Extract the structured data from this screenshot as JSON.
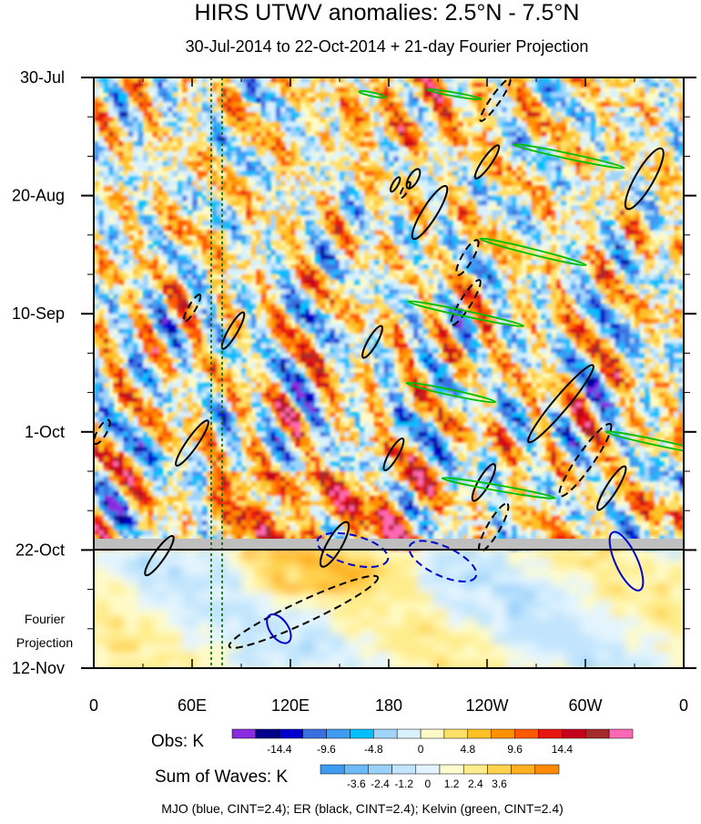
{
  "colors": {
    "obs_scale": [
      "#8a2be2",
      "#00008b",
      "#0000cd",
      "#3a6fe0",
      "#3f9af2",
      "#00bfff",
      "#9fd4fb",
      "#d8f2ff",
      "#fffbc8",
      "#ffe066",
      "#ffc125",
      "#ff9000",
      "#ff5a00",
      "#e8140f",
      "#c4001d",
      "#a52a2a",
      "#ff69b4"
    ],
    "sum_scale": [
      "#3f9af2",
      "#6cbaf8",
      "#98d2fb",
      "#c2e5fd",
      "#e3f4fe",
      "#fffbd0",
      "#ffec8b",
      "#ffd24d",
      "#ffb020",
      "#ff8a00"
    ],
    "mjo": "#0000cd",
    "er": "#000000",
    "kelvin": "#00c000",
    "divider": "#bfbfbf",
    "dotted_lines": "#006400"
  },
  "chart_data": {
    "type": "heatmap",
    "title": "HIRS UTWV anomalies: 2.5°N - 7.5°N",
    "subtitle": "30-Jul-2014 to 22-Oct-2014 + 21-day Fourier Projection",
    "x_ticks": [
      "0",
      "60E",
      "120E",
      "180",
      "120W",
      "60W",
      "0"
    ],
    "y_ticks": [
      "30-Jul",
      "20-Aug",
      "10-Sep",
      "1-Oct",
      "22-Oct",
      "12-Nov"
    ],
    "projection_label_line1": "Fourier",
    "projection_label_line2": "Projection",
    "obs_legend": {
      "label": "Obs: K",
      "tick_labels": [
        "-14.4",
        "-9.6",
        "-4.8",
        "0",
        "4.8",
        "9.6",
        "14.4"
      ]
    },
    "sum_legend": {
      "label": "Sum of Waves: K",
      "tick_labels": [
        "-3.6",
        "-2.4",
        "-1.2",
        "0",
        "1.2",
        "2.4",
        "3.6"
      ]
    },
    "footer": "MJO (blue, CINT=2.4); ER (black, CINT=2.4); Kelvin (green, CINT=2.4)",
    "overlays": {
      "er": [
        {
          "lon": 184,
          "day": 19,
          "rx": 9,
          "ry": 3,
          "rot": -60,
          "dash": false
        },
        {
          "lon": 195,
          "day": 18,
          "rx": 12,
          "ry": 5,
          "rot": -60,
          "dash": false
        },
        {
          "lon": 240,
          "day": 15,
          "rx": 22,
          "ry": 5,
          "rot": -55,
          "dash": false
        },
        {
          "lon": 205,
          "day": 24,
          "rx": 34,
          "ry": 8,
          "rot": -58,
          "dash": false
        },
        {
          "lon": 228,
          "day": 32,
          "rx": 22,
          "ry": 6,
          "rot": -60,
          "dash": true
        },
        {
          "lon": 190,
          "day": 20,
          "rx": 10,
          "ry": 3,
          "rot": -60,
          "dash": true
        },
        {
          "lon": 170,
          "day": 47,
          "rx": 20,
          "ry": 5,
          "rot": -60,
          "dash": false
        },
        {
          "lon": 183,
          "day": 67,
          "rx": 20,
          "ry": 5,
          "rot": -60,
          "dash": false
        },
        {
          "lon": 60,
          "day": 65,
          "rx": 30,
          "ry": 6,
          "rot": -55,
          "dash": false
        },
        {
          "lon": 85,
          "day": 45,
          "rx": 23,
          "ry": 5,
          "rot": -60,
          "dash": false
        },
        {
          "lon": 60,
          "day": 41,
          "rx": 17,
          "ry": 4,
          "rot": -60,
          "dash": true
        },
        {
          "lon": 227,
          "day": 40,
          "rx": 29,
          "ry": 6,
          "rot": -58,
          "dash": true
        },
        {
          "lon": 300,
          "day": 68,
          "rx": 48,
          "ry": 9,
          "rot": -55,
          "dash": true
        },
        {
          "lon": 285,
          "day": 58,
          "rx": 55,
          "ry": 8,
          "rot": -50,
          "dash": false
        },
        {
          "lon": 316,
          "day": 73,
          "rx": 28,
          "ry": 6,
          "rot": -58,
          "dash": false
        },
        {
          "lon": 244,
          "day": 80,
          "rx": 30,
          "ry": 7,
          "rot": -60,
          "dash": true
        },
        {
          "lon": 238,
          "day": 72,
          "rx": 23,
          "ry": 6,
          "rot": -60,
          "dash": false
        },
        {
          "lon": 147,
          "day": 83,
          "rx": 28,
          "ry": 8,
          "rot": -60,
          "dash": false
        },
        {
          "lon": 40,
          "day": 85,
          "rx": 26,
          "ry": 6,
          "rot": -55,
          "dash": false
        },
        {
          "lon": 128,
          "day": 95,
          "rx": 90,
          "ry": 12,
          "rot": -25,
          "dash": true
        },
        {
          "lon": 336,
          "day": 18,
          "rx": 38,
          "ry": 10,
          "rot": -60,
          "dash": false
        },
        {
          "lon": 245,
          "day": 4,
          "rx": 28,
          "ry": 5,
          "rot": -55,
          "dash": true
        },
        {
          "lon": 5,
          "day": 63,
          "rx": 15,
          "ry": 5,
          "rot": -60,
          "dash": true
        }
      ],
      "mjo": [
        {
          "lon": 113,
          "day": 98,
          "rx": 18,
          "ry": 10,
          "rot": 55,
          "dash": false
        },
        {
          "lon": 158,
          "day": 84,
          "rx": 40,
          "ry": 16,
          "rot": 15,
          "dash": true
        },
        {
          "lon": 213,
          "day": 86,
          "rx": 40,
          "ry": 16,
          "rot": 25,
          "dash": true
        },
        {
          "lon": 325,
          "day": 86,
          "rx": 35,
          "ry": 12,
          "rot": 65,
          "dash": false
        }
      ],
      "kelvin": [
        {
          "lon": 290,
          "day": 14,
          "rx": 62,
          "ry": 3,
          "rot": 12,
          "dash": false
        },
        {
          "lon": 268,
          "day": 31,
          "rx": 60,
          "ry": 3,
          "rot": 14,
          "dash": false
        },
        {
          "lon": 227,
          "day": 42,
          "rx": 65,
          "ry": 3,
          "rot": 12,
          "dash": false
        },
        {
          "lon": 218,
          "day": 56,
          "rx": 50,
          "ry": 3,
          "rot": 12,
          "dash": false
        },
        {
          "lon": 247,
          "day": 73,
          "rx": 63,
          "ry": 3,
          "rot": 10,
          "dash": false
        },
        {
          "lon": 345,
          "day": 65,
          "rx": 60,
          "ry": 3,
          "rot": 12,
          "dash": false
        },
        {
          "lon": 170,
          "day": 3,
          "rx": 15,
          "ry": 2,
          "rot": 12,
          "dash": false
        },
        {
          "lon": 220,
          "day": 3,
          "rx": 30,
          "ry": 2,
          "rot": 10,
          "dash": false
        }
      ]
    }
  }
}
